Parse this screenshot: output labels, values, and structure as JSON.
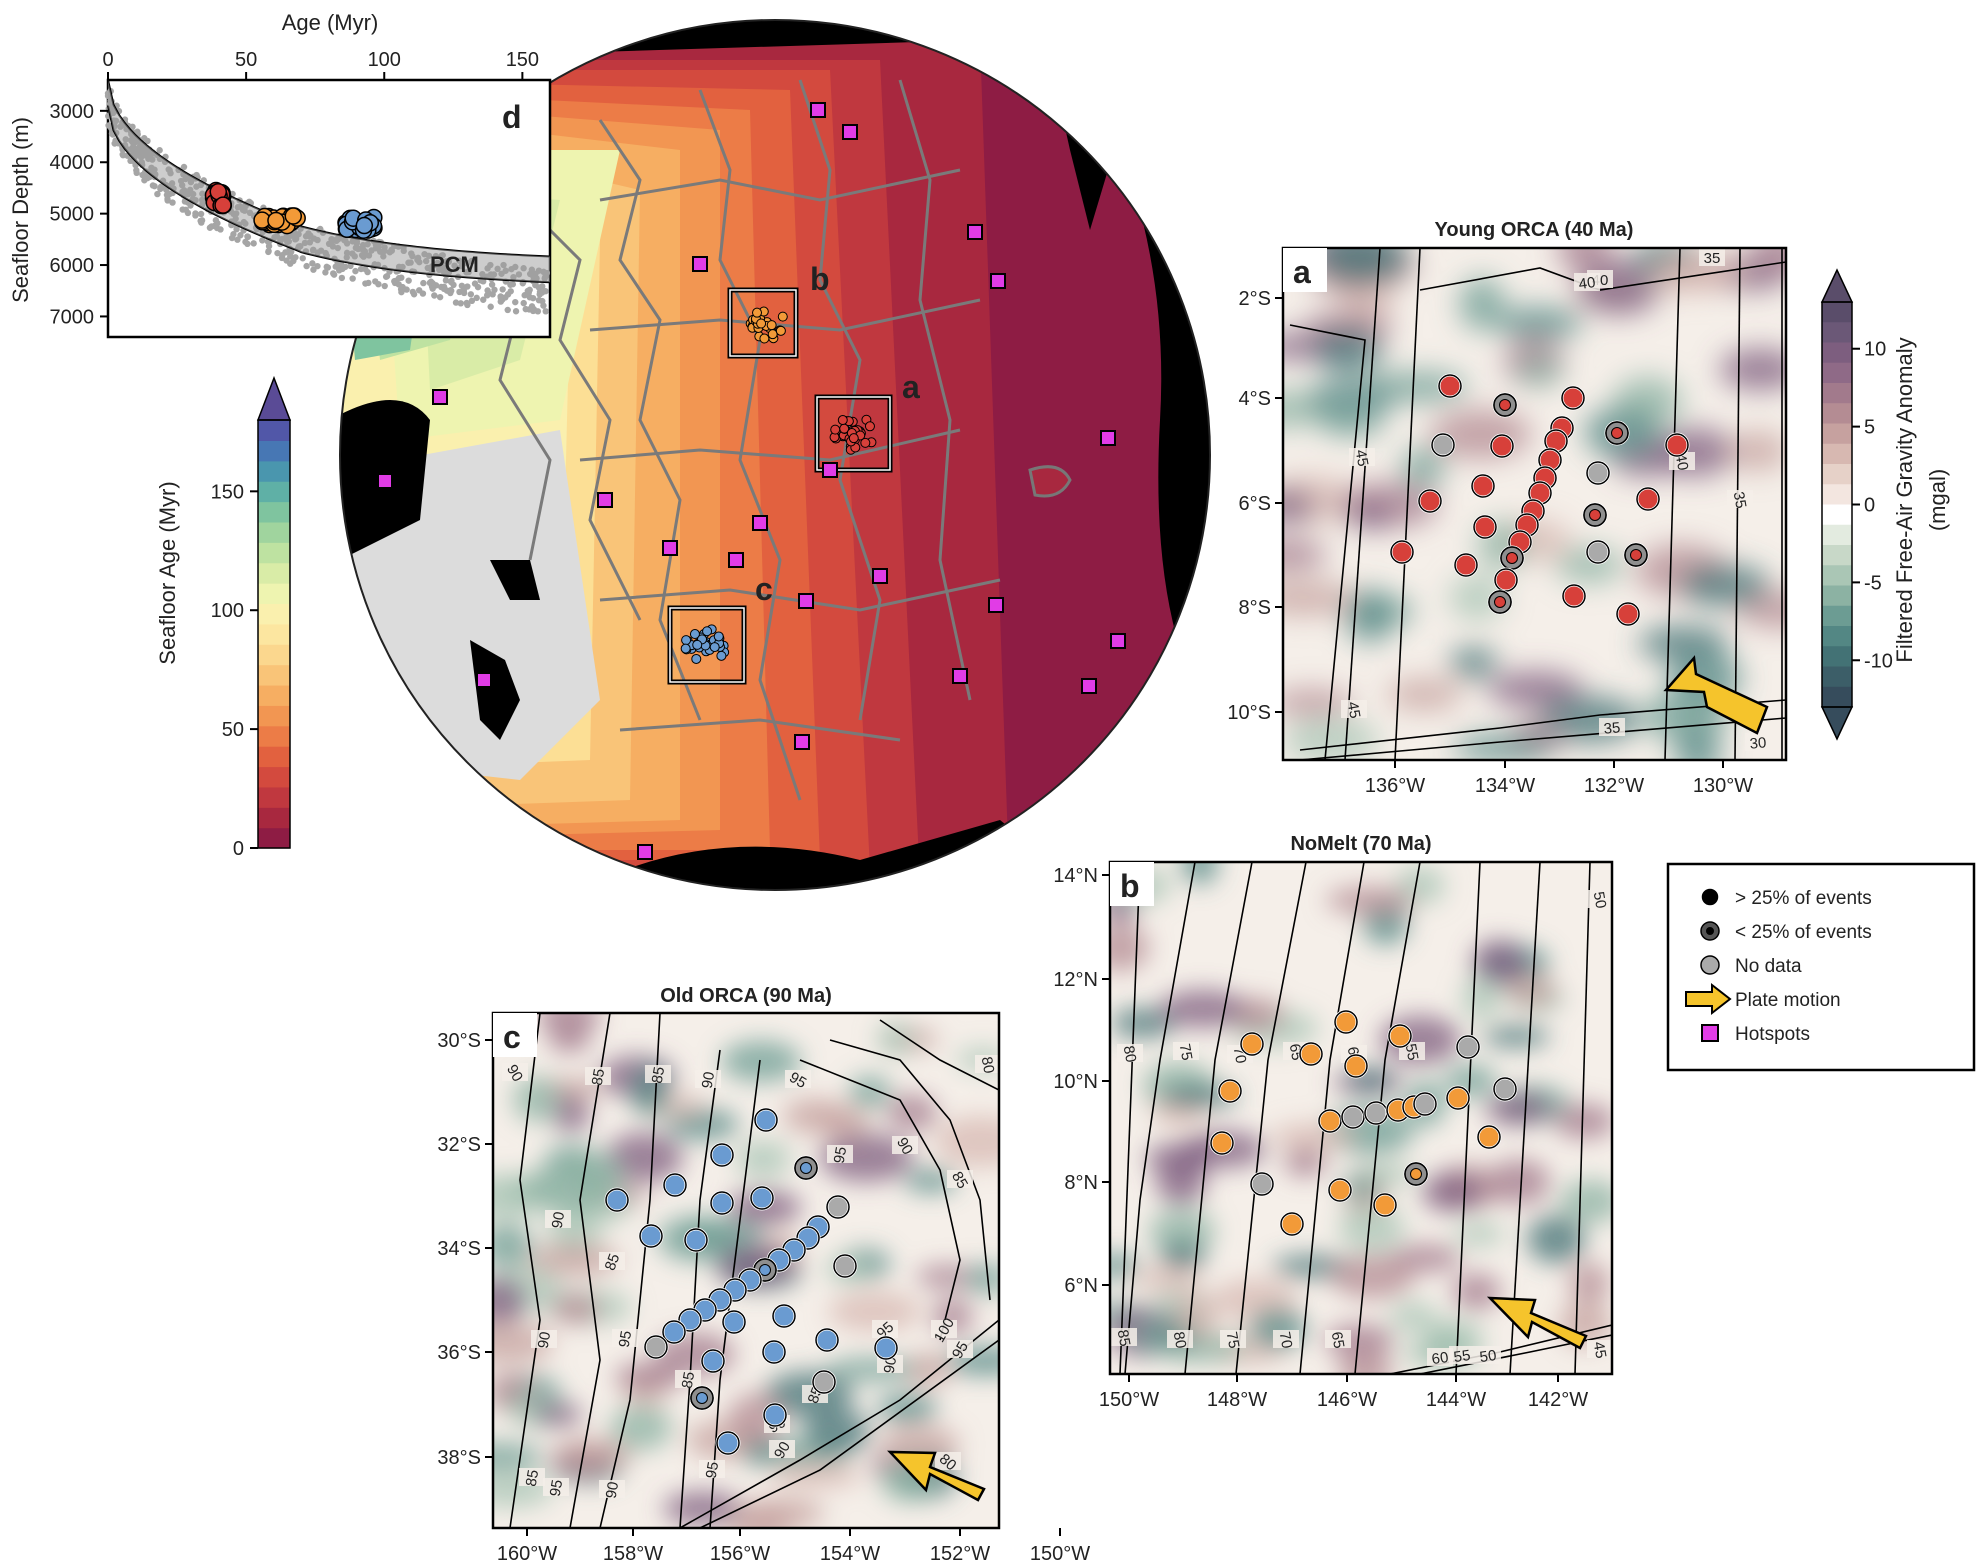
{
  "globe": {
    "box_labels": [
      "a",
      "b",
      "c"
    ]
  },
  "panel_d": {
    "letter": "d",
    "xlabel": "Age (Myr)",
    "ylabel": "Seafloor Depth (m)",
    "xticks": [
      "0",
      "50",
      "100",
      "150"
    ],
    "yticks": [
      "3000",
      "4000",
      "5000",
      "6000",
      "7000"
    ],
    "model_label": "PCM"
  },
  "age_colorbar": {
    "label": "Seafloor Age (Myr)",
    "ticks": [
      "0",
      "50",
      "100",
      "150"
    ],
    "colors": [
      "#8e1c44",
      "#a8283f",
      "#c0383f",
      "#d34a3e",
      "#e2613f",
      "#ec7c47",
      "#f29652",
      "#f6ae62",
      "#f9c478",
      "#fbd78e",
      "#fce6a0",
      "#faf0ae",
      "#eef4b0",
      "#d9eca7",
      "#bee2a1",
      "#a0d49e",
      "#7fc49f",
      "#5fb0a6",
      "#4a96ae",
      "#4777b4",
      "#5157a8"
    ],
    "arrow_color": "#5a4b96"
  },
  "gravity_colorbar": {
    "label_line1": "Filtered Free-Air Gravity Anomaly",
    "label_line2": "(mgal)",
    "ticks": [
      "10",
      "5",
      "0",
      "-5",
      "-10"
    ],
    "colors": [
      "#5a4d6a",
      "#6b5877",
      "#7d5e7f",
      "#8f6a87",
      "#a27a8c",
      "#b48c93",
      "#c6a19f",
      "#d7b8b1",
      "#e6d1c8",
      "#f3e6e0",
      "#ffffff",
      "#e3ebe0",
      "#c8d8c8",
      "#aac6b5",
      "#8cb2a3",
      "#6c9c93",
      "#538784",
      "#437275",
      "#3c5e68",
      "#364c5c"
    ],
    "top_arrow": "#5a4d6a",
    "bottom_arrow": "#364c5c"
  },
  "panel_a": {
    "letter": "a",
    "title": "Young ORCA (40 Ma)",
    "xticks": [
      "136°W",
      "134°W",
      "132°W",
      "130°W"
    ],
    "yticks": [
      "2°S",
      "4°S",
      "6°S",
      "8°S",
      "10°S"
    ],
    "contours": [
      "45",
      "45",
      "40",
      "40",
      "35",
      "35",
      "40",
      "35",
      "30"
    ],
    "station_color": "#d7403a"
  },
  "panel_b": {
    "letter": "b",
    "title": "NoMelt (70 Ma)",
    "xticks": [
      "150°W",
      "148°W",
      "146°W",
      "144°W",
      "142°W"
    ],
    "yticks": [
      "14°N",
      "12°N",
      "10°N",
      "8°N",
      "6°N"
    ],
    "contours": [
      "80",
      "75",
      "70",
      "65",
      "60",
      "55",
      "50",
      "85",
      "80",
      "75",
      "70",
      "65",
      "60",
      "55",
      "50",
      "45"
    ],
    "station_color": "#f29a38"
  },
  "panel_c": {
    "letter": "c",
    "title": "Old ORCA (90 Ma)",
    "xticks": [
      "160°W",
      "158°W",
      "156°W",
      "154°W",
      "152°W",
      "150°W"
    ],
    "yticks": [
      "30°S",
      "32°S",
      "34°S",
      "36°S",
      "38°S"
    ],
    "contours": [
      "90",
      "85",
      "85",
      "90",
      "95",
      "90",
      "85",
      "80",
      "95",
      "90",
      "85",
      "90",
      "95",
      "100",
      "95",
      "85",
      "90",
      "85",
      "95",
      "90",
      "80",
      "95",
      "90",
      "85",
      "90",
      "95"
    ],
    "station_color": "#6a9bd1"
  },
  "legend": {
    "items": [
      {
        "label": "> 25% of events",
        "symbol": "filled"
      },
      {
        "label": "< 25% of events",
        "symbol": "ringed"
      },
      {
        "label": "No data",
        "symbol": "gray"
      },
      {
        "label": "Plate motion",
        "symbol": "arrow"
      },
      {
        "label": "Hotspots",
        "symbol": "square"
      }
    ],
    "arrow_color": "#f5c42c",
    "hotspot_color": "#e13ce6"
  }
}
